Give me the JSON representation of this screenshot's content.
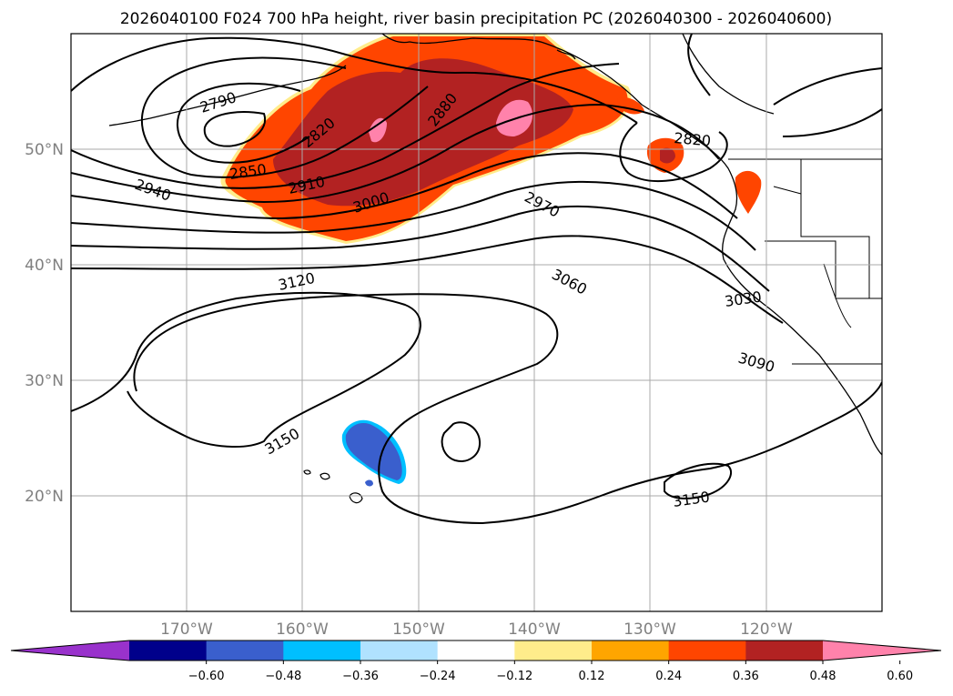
{
  "title": "2026040100 F024 700 hPa height, river basin precipitation PC (2026040300 - 2026040600)",
  "map": {
    "lon_range": [
      -180,
      -110
    ],
    "lat_range": [
      10,
      60
    ],
    "lat_ticks": [
      {
        "value": 50,
        "label": "50°N"
      },
      {
        "value": 40,
        "label": "40°N"
      },
      {
        "value": 30,
        "label": "30°N"
      },
      {
        "value": 20,
        "label": "20°N"
      }
    ],
    "lon_ticks": [
      {
        "value": -170,
        "label": "170°W"
      },
      {
        "value": -160,
        "label": "160°W"
      },
      {
        "value": -150,
        "label": "150°W"
      },
      {
        "value": -140,
        "label": "140°W"
      },
      {
        "value": -130,
        "label": "130°W"
      },
      {
        "value": -120,
        "label": "120°W"
      }
    ],
    "gridlines": true,
    "contour_labels": [
      "2790",
      "2820",
      "2850",
      "2880",
      "2910",
      "2940",
      "3000",
      "2970",
      "2820",
      "3060",
      "3030",
      "3120",
      "3090",
      "3150",
      "3150"
    ],
    "colorbar": {
      "ticks": [
        "−0.60",
        "−0.48",
        "−0.36",
        "−0.24",
        "−0.12",
        "0.12",
        "0.24",
        "0.36",
        "0.48",
        "0.60"
      ],
      "colors": [
        "#9932cc",
        "#00008b",
        "#3a5fcd",
        "#00bfff",
        "#b0e2ff",
        "#ffffff",
        "#ffec8b",
        "#ffa500",
        "#ff4500",
        "#b22222",
        "#ff82ab"
      ]
    }
  }
}
